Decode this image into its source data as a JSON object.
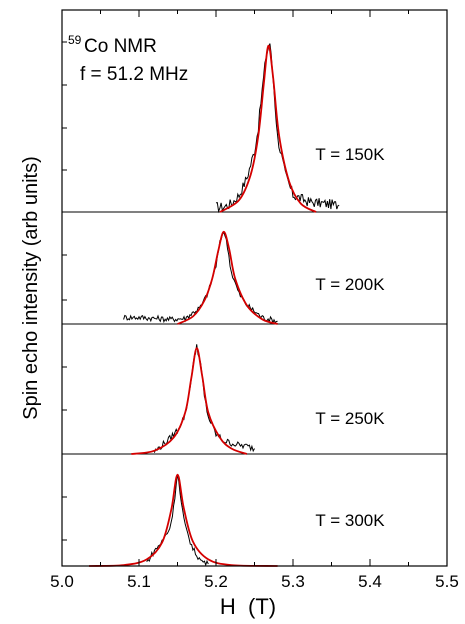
{
  "chart_data": {
    "type": "line",
    "xlabel": "H  (T)",
    "ylabel": "Spin echo intensity (arb units)",
    "xlim": [
      5.0,
      5.5
    ],
    "xticks": [
      "5.0",
      "5.1",
      "5.2",
      "5.3",
      "5.4",
      "5.5"
    ],
    "annotation": {
      "isotope_mass": "59",
      "nucleus": "Co NMR",
      "frequency": "f = 51.2 MHz"
    },
    "colors": {
      "data": "#000000",
      "fit": "#d40000",
      "axes": "#000000"
    },
    "panels": [
      {
        "label": "T = 150K",
        "data_x": [
          5.2,
          5.21,
          5.22,
          5.23,
          5.24,
          5.25,
          5.255,
          5.26,
          5.265,
          5.27,
          5.275,
          5.28,
          5.29,
          5.3,
          5.32,
          5.34,
          5.36
        ],
        "data_y": [
          0.03,
          0.03,
          0.05,
          0.1,
          0.2,
          0.36,
          0.5,
          0.72,
          0.92,
          1.0,
          0.74,
          0.44,
          0.22,
          0.1,
          0.06,
          0.05,
          0.04
        ],
        "fit_x": [
          5.205,
          5.23,
          5.245,
          5.255,
          5.262,
          5.268,
          5.274,
          5.282,
          5.295,
          5.31,
          5.33
        ],
        "fit_y": [
          0.0,
          0.07,
          0.22,
          0.45,
          0.75,
          0.98,
          0.8,
          0.45,
          0.18,
          0.05,
          0.0
        ]
      },
      {
        "label": "T = 200K",
        "data_x": [
          5.08,
          5.1,
          5.12,
          5.14,
          5.16,
          5.18,
          5.19,
          5.2,
          5.205,
          5.21,
          5.215,
          5.22,
          5.23,
          5.24,
          5.26,
          5.28
        ],
        "data_y": [
          0.07,
          0.07,
          0.06,
          0.05,
          0.06,
          0.18,
          0.34,
          0.62,
          0.86,
          1.0,
          0.82,
          0.55,
          0.32,
          0.2,
          0.07,
          0.03
        ],
        "fit_x": [
          5.15,
          5.17,
          5.185,
          5.195,
          5.203,
          5.21,
          5.217,
          5.225,
          5.24,
          5.26,
          5.28
        ],
        "fit_y": [
          0.0,
          0.08,
          0.25,
          0.48,
          0.78,
          0.98,
          0.8,
          0.48,
          0.2,
          0.05,
          0.0
        ]
      },
      {
        "label": "T = 250K",
        "data_x": [
          5.12,
          5.13,
          5.14,
          5.15,
          5.16,
          5.165,
          5.17,
          5.175,
          5.18,
          5.185,
          5.19,
          5.2,
          5.21,
          5.22,
          5.23,
          5.24,
          5.25
        ],
        "data_y": [
          0.02,
          0.08,
          0.14,
          0.22,
          0.36,
          0.56,
          0.8,
          1.0,
          0.82,
          0.52,
          0.34,
          0.18,
          0.12,
          0.1,
          0.08,
          0.07,
          0.05
        ],
        "fit_x": [
          5.09,
          5.12,
          5.145,
          5.16,
          5.168,
          5.175,
          5.182,
          5.19,
          5.205,
          5.22,
          5.24
        ],
        "fit_y": [
          0.0,
          0.03,
          0.15,
          0.38,
          0.7,
          0.97,
          0.72,
          0.38,
          0.15,
          0.05,
          0.0
        ]
      },
      {
        "label": "T = 300K",
        "data_x": [
          5.11,
          5.12,
          5.13,
          5.14,
          5.145,
          5.15,
          5.155,
          5.16,
          5.17,
          5.18,
          5.19
        ],
        "data_y": [
          0.04,
          0.16,
          0.26,
          0.4,
          0.62,
          1.0,
          0.66,
          0.42,
          0.18,
          0.06,
          0.02
        ],
        "fit_x": [
          5.035,
          5.08,
          5.11,
          5.13,
          5.142,
          5.15,
          5.158,
          5.17,
          5.19,
          5.22,
          5.28
        ],
        "fit_y": [
          0.0,
          0.01,
          0.07,
          0.25,
          0.6,
          0.97,
          0.62,
          0.26,
          0.07,
          0.01,
          0.0
        ]
      }
    ]
  }
}
